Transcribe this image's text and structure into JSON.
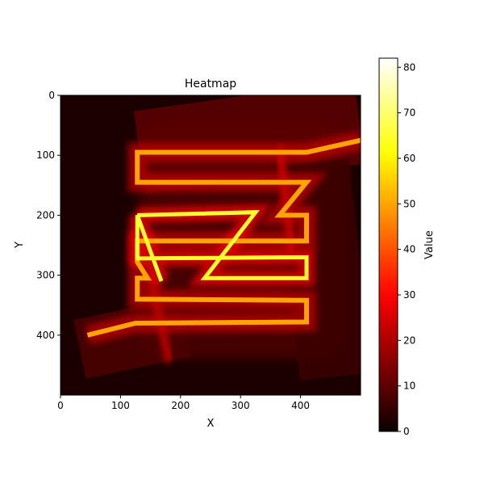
{
  "chart_data": {
    "type": "heatmap",
    "title": "Heatmap",
    "xlabel": "X",
    "ylabel": "Y",
    "xlim": [
      0,
      500
    ],
    "ylim": [
      500,
      0
    ],
    "x_ticks": [
      0,
      100,
      200,
      300,
      400
    ],
    "y_ticks": [
      0,
      100,
      200,
      300,
      400
    ],
    "colormap": "hot",
    "colorbar": {
      "label": "Value",
      "min": 0,
      "max": 82,
      "ticks": [
        0,
        10,
        20,
        30,
        40,
        50,
        60,
        70,
        80
      ]
    },
    "background_value": 2,
    "halo_box": {
      "x": [
        130,
        470
      ],
      "y": [
        40,
        440
      ],
      "value": 7
    },
    "paths": [
      {
        "value": 50,
        "width": 6,
        "points": [
          [
            45,
            400
          ],
          [
            125,
            380
          ],
          [
            410,
            378
          ],
          [
            410,
            342
          ],
          [
            128,
            340
          ],
          [
            128,
            305
          ],
          [
            145,
            305
          ],
          [
            128,
            278
          ],
          [
            128,
            243
          ],
          [
            410,
            243
          ],
          [
            410,
            200
          ],
          [
            365,
            200
          ],
          [
            410,
            145
          ],
          [
            128,
            145
          ],
          [
            128,
            95
          ],
          [
            410,
            95
          ],
          [
            500,
            75
          ]
        ]
      },
      {
        "value": 65,
        "width": 5,
        "points": [
          [
            128,
            200
          ],
          [
            325,
            195
          ],
          [
            240,
            305
          ],
          [
            410,
            305
          ],
          [
            410,
            270
          ],
          [
            128,
            272
          ],
          [
            128,
            200
          ],
          [
            168,
            310
          ]
        ]
      }
    ],
    "rotated_bands": [
      {
        "x": 130,
        "y": 0,
        "w": 370,
        "h": 140,
        "angle": -8,
        "value": 10
      },
      {
        "x": 30,
        "y": 355,
        "w": 180,
        "h": 100,
        "angle": -12,
        "value": 8
      },
      {
        "x": 380,
        "y": 110,
        "w": 120,
        "h": 360,
        "angle": -6,
        "value": 6
      }
    ],
    "ridges": [
      {
        "points": [
          [
            365,
            90
          ],
          [
            385,
            255
          ]
        ],
        "value": 28
      },
      {
        "points": [
          [
            150,
            300
          ],
          [
            180,
            440
          ]
        ],
        "value": 24
      }
    ]
  }
}
